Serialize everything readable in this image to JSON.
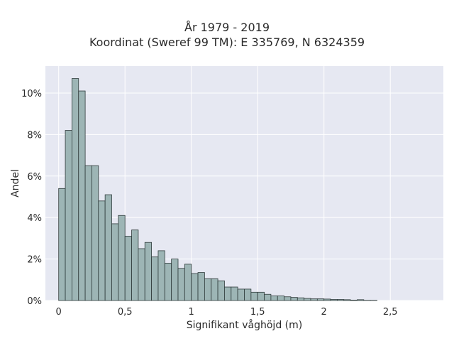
{
  "chart_data": {
    "type": "bar",
    "title": "År 1979 - 2019",
    "subtitle": "Koordinat (Sweref 99 TM): E 335769, N 6324359",
    "xlabel": "Signifikant våghöjd (m)",
    "ylabel": "Andel",
    "xlim": [
      -0.1,
      2.9
    ],
    "ylim": [
      0,
      11.3
    ],
    "xticks": [
      {
        "value": 0,
        "label": "0"
      },
      {
        "value": 0.5,
        "label": "0,5"
      },
      {
        "value": 1,
        "label": "1"
      },
      {
        "value": 1.5,
        "label": "1,5"
      },
      {
        "value": 2,
        "label": "2"
      },
      {
        "value": 2.5,
        "label": "2,5"
      }
    ],
    "yticks": [
      {
        "value": 0,
        "label": "0%"
      },
      {
        "value": 2,
        "label": "2%"
      },
      {
        "value": 4,
        "label": "4%"
      },
      {
        "value": 6,
        "label": "6%"
      },
      {
        "value": 8,
        "label": "8%"
      },
      {
        "value": 10,
        "label": "10%"
      }
    ],
    "bin_width": 0.05,
    "bin_start": 0.0,
    "values": [
      5.4,
      8.2,
      10.7,
      10.1,
      6.5,
      6.5,
      4.8,
      5.1,
      3.7,
      4.1,
      3.1,
      3.4,
      2.5,
      2.8,
      2.1,
      2.4,
      1.8,
      2.0,
      1.55,
      1.75,
      1.3,
      1.35,
      1.05,
      1.05,
      0.95,
      0.65,
      0.65,
      0.55,
      0.55,
      0.4,
      0.4,
      0.3,
      0.22,
      0.22,
      0.18,
      0.15,
      0.13,
      0.1,
      0.08,
      0.08,
      0.07,
      0.05,
      0.05,
      0.04,
      0.02,
      0.04,
      0.01,
      0.01
    ],
    "grid": true,
    "colors": {
      "bar_fill": "#9db5b5",
      "bar_edge": "#2f3b3b",
      "plot_bg": "#e6e8f2",
      "grid": "#ffffff"
    }
  }
}
